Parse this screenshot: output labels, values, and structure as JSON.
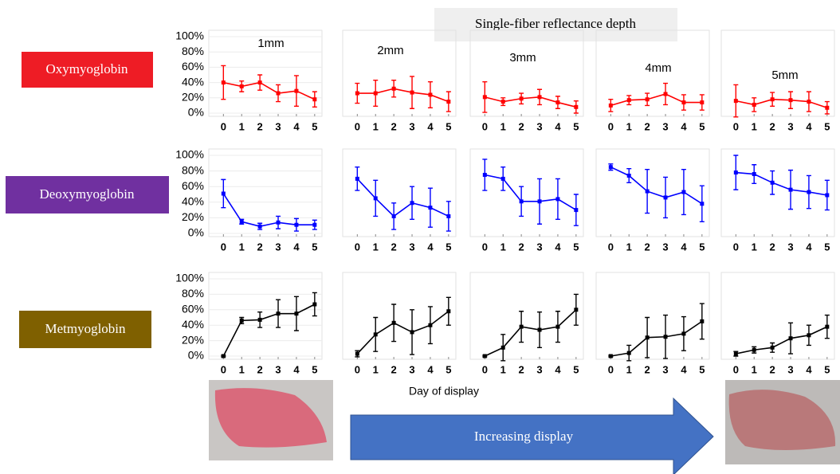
{
  "header": "Single-fiber reflectance depth",
  "rows": [
    "Oxymyoglobin",
    "Deoxymyoglobin",
    "Metmyoglobin"
  ],
  "x_label": "Day of display",
  "arrow_label": "Increasing display",
  "chart_data": [
    {
      "type": "line",
      "title": "1mm",
      "color": "#ff0000",
      "x": [
        0,
        1,
        2,
        3,
        4,
        5
      ],
      "xticks": [
        0,
        1,
        2,
        3,
        4,
        5
      ],
      "xlim": [
        -0.8,
        5.4
      ],
      "ylim": [
        0,
        100
      ],
      "yticks": [
        {
          "value": 0,
          "label": "0%"
        },
        {
          "value": 20,
          "label": "20%"
        },
        {
          "value": 40,
          "label": "40%"
        },
        {
          "value": 60,
          "label": "60%"
        },
        {
          "value": 80,
          "label": "80%"
        },
        {
          "value": 100,
          "label": "100%"
        }
      ],
      "values": [
        40,
        35,
        40,
        26,
        29,
        18
      ],
      "errors": [
        22,
        7,
        10,
        11,
        20,
        10
      ]
    },
    {
      "type": "line",
      "title": "2mm",
      "color": "#ff0000",
      "x": [
        0,
        1,
        2,
        3,
        4,
        5
      ],
      "xticks": [
        0,
        1,
        2,
        3,
        4,
        5
      ],
      "xlim": [
        -0.8,
        5.4
      ],
      "ylim": [
        0,
        100
      ],
      "values": [
        26,
        26,
        32,
        27,
        24,
        15
      ],
      "errors": [
        13,
        17,
        11,
        21,
        17,
        13
      ]
    },
    {
      "type": "line",
      "title": "3mm",
      "color": "#ff0000",
      "x": [
        0,
        1,
        2,
        3,
        4,
        5
      ],
      "xticks": [
        0,
        1,
        2,
        3,
        4,
        5
      ],
      "xlim": [
        -0.8,
        5.4
      ],
      "ylim": [
        0,
        100
      ],
      "values": [
        21,
        15,
        19,
        21,
        14,
        8
      ],
      "errors": [
        20,
        5,
        7,
        10,
        8,
        8
      ]
    },
    {
      "type": "line",
      "title": "4mm",
      "color": "#ff0000",
      "x": [
        0,
        1,
        2,
        3,
        4,
        5
      ],
      "xticks": [
        0,
        1,
        2,
        3,
        4,
        5
      ],
      "xlim": [
        -0.8,
        5.4
      ],
      "ylim": [
        0,
        100
      ],
      "values": [
        10,
        17,
        18,
        25,
        14,
        14
      ],
      "errors": [
        8,
        6,
        8,
        14,
        10,
        10
      ]
    },
    {
      "type": "line",
      "title": "5mm",
      "color": "#ff0000",
      "x": [
        0,
        1,
        2,
        3,
        4,
        5
      ],
      "xticks": [
        0,
        1,
        2,
        3,
        4,
        5
      ],
      "xlim": [
        -0.8,
        5.4
      ],
      "ylim": [
        0,
        100
      ],
      "values": [
        16,
        11,
        18,
        17,
        15,
        7
      ],
      "errors": [
        21,
        9,
        9,
        11,
        13,
        8
      ]
    },
    {
      "type": "line",
      "color": "#0000ff",
      "x": [
        0,
        1,
        2,
        3,
        4,
        5
      ],
      "xticks": [
        0,
        1,
        2,
        3,
        4,
        5
      ],
      "xlim": [
        -0.8,
        5.4
      ],
      "ylim": [
        0,
        100
      ],
      "yticks": [
        {
          "value": 0,
          "label": "0%"
        },
        {
          "value": 20,
          "label": "20%"
        },
        {
          "value": 40,
          "label": "40%"
        },
        {
          "value": 60,
          "label": "60%"
        },
        {
          "value": 80,
          "label": "80%"
        },
        {
          "value": 100,
          "label": "100%"
        }
      ],
      "values": [
        51,
        15,
        9,
        14,
        11,
        11
      ],
      "errors": [
        18,
        3,
        4,
        8,
        8,
        6
      ]
    },
    {
      "type": "line",
      "color": "#0000ff",
      "x": [
        0,
        1,
        2,
        3,
        4,
        5
      ],
      "xticks": [
        0,
        1,
        2,
        3,
        4,
        5
      ],
      "xlim": [
        -0.8,
        5.4
      ],
      "ylim": [
        0,
        100
      ],
      "values": [
        70,
        45,
        22,
        39,
        33,
        22
      ],
      "errors": [
        15,
        23,
        17,
        21,
        25,
        19
      ]
    },
    {
      "type": "line",
      "color": "#0000ff",
      "x": [
        0,
        1,
        2,
        3,
        4,
        5
      ],
      "xticks": [
        0,
        1,
        2,
        3,
        4,
        5
      ],
      "xlim": [
        -0.8,
        5.4
      ],
      "ylim": [
        0,
        100
      ],
      "values": [
        75,
        70,
        41,
        41,
        44,
        30
      ],
      "errors": [
        20,
        15,
        19,
        29,
        26,
        20
      ]
    },
    {
      "type": "line",
      "color": "#0000ff",
      "x": [
        0,
        1,
        2,
        3,
        4,
        5
      ],
      "xticks": [
        0,
        1,
        2,
        3,
        4,
        5
      ],
      "xlim": [
        -0.8,
        5.4
      ],
      "ylim": [
        0,
        100
      ],
      "values": [
        85,
        74,
        54,
        46,
        53,
        38
      ],
      "errors": [
        4,
        9,
        28,
        26,
        29,
        23
      ]
    },
    {
      "type": "line",
      "color": "#0000ff",
      "x": [
        0,
        1,
        2,
        3,
        4,
        5
      ],
      "xticks": [
        0,
        1,
        2,
        3,
        4,
        5
      ],
      "xlim": [
        -0.8,
        5.4
      ],
      "ylim": [
        0,
        100
      ],
      "values": [
        78,
        76,
        65,
        56,
        53,
        49
      ],
      "errors": [
        22,
        12,
        15,
        25,
        21,
        19
      ]
    },
    {
      "type": "line",
      "color": "#000000",
      "x": [
        0,
        1,
        2,
        3,
        4,
        5
      ],
      "xticks": [
        0,
        1,
        2,
        3,
        4,
        5
      ],
      "xlim": [
        -0.8,
        5.4
      ],
      "ylim": [
        0,
        100
      ],
      "yticks": [
        {
          "value": 0,
          "label": "0%"
        },
        {
          "value": 20,
          "label": "20%"
        },
        {
          "value": 40,
          "label": "40%"
        },
        {
          "value": 60,
          "label": "60%"
        },
        {
          "value": 80,
          "label": "80%"
        },
        {
          "value": 100,
          "label": "100%"
        }
      ],
      "values": [
        0,
        46,
        47,
        55,
        55,
        67
      ],
      "errors": [
        1,
        4,
        10,
        18,
        22,
        15
      ]
    },
    {
      "type": "line",
      "color": "#000000",
      "x": [
        0,
        1,
        2,
        3,
        4,
        5
      ],
      "xticks": [
        0,
        1,
        2,
        3,
        4,
        5
      ],
      "xlim": [
        -0.8,
        5.4
      ],
      "ylim": [
        0,
        100
      ],
      "values": [
        3,
        28,
        43,
        31,
        40,
        58
      ],
      "errors": [
        4,
        22,
        24,
        29,
        24,
        18
      ]
    },
    {
      "type": "line",
      "color": "#000000",
      "x": [
        0,
        1,
        2,
        3,
        4,
        5
      ],
      "xticks": [
        0,
        1,
        2,
        3,
        4,
        5
      ],
      "xlim": [
        -0.8,
        5.4
      ],
      "ylim": [
        0,
        100
      ],
      "values": [
        0,
        11,
        38,
        34,
        38,
        60
      ],
      "errors": [
        1,
        17,
        20,
        23,
        20,
        20
      ]
    },
    {
      "type": "line",
      "color": "#000000",
      "x": [
        0,
        1,
        2,
        3,
        4,
        5
      ],
      "xticks": [
        0,
        1,
        2,
        3,
        4,
        5
      ],
      "xlim": [
        -0.8,
        5.4
      ],
      "ylim": [
        0,
        100
      ],
      "values": [
        0,
        4,
        24,
        25,
        29,
        45
      ],
      "errors": [
        1,
        10,
        26,
        28,
        22,
        23
      ]
    },
    {
      "type": "line",
      "color": "#000000",
      "x": [
        0,
        1,
        2,
        3,
        4,
        5
      ],
      "xticks": [
        0,
        1,
        2,
        3,
        4,
        5
      ],
      "xlim": [
        -0.8,
        5.4
      ],
      "ylim": [
        0,
        100
      ],
      "values": [
        3,
        8,
        11,
        23,
        27,
        38
      ],
      "errors": [
        3,
        4,
        6,
        20,
        13,
        15
      ]
    }
  ]
}
